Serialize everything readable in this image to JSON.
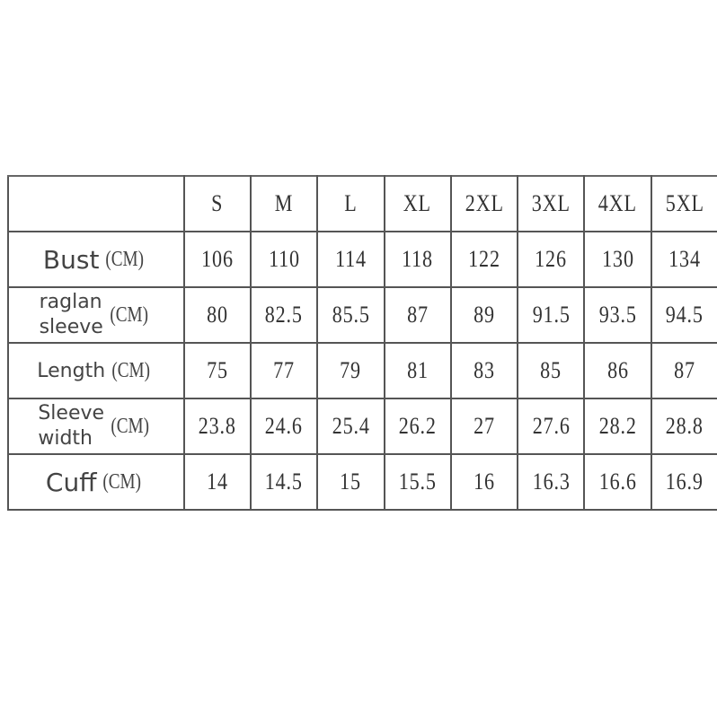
{
  "size_chart": {
    "sizes": [
      "S",
      "M",
      "L",
      "XL",
      "2XL",
      "3XL",
      "4XL",
      "5XL"
    ],
    "rows": [
      {
        "name_lines": [
          "Bust"
        ],
        "unit": "(CM)",
        "values": [
          "106",
          "110",
          "114",
          "118",
          "122",
          "126",
          "130",
          "134"
        ]
      },
      {
        "name_lines": [
          "raglan",
          "sleeve"
        ],
        "unit": "(CM)",
        "values": [
          "80",
          "82.5",
          "85.5",
          "87",
          "89",
          "91.5",
          "93.5",
          "94.5"
        ]
      },
      {
        "name_lines": [
          "Length"
        ],
        "unit": "(CM)",
        "values": [
          "75",
          "77",
          "79",
          "81",
          "83",
          "85",
          "86",
          "87"
        ]
      },
      {
        "name_lines": [
          "Sleeve",
          "width"
        ],
        "unit": "(CM)",
        "values": [
          "23.8",
          "24.6",
          "25.4",
          "26.2",
          "27",
          "27.6",
          "28.2",
          "28.8"
        ]
      },
      {
        "name_lines": [
          "Cuff"
        ],
        "unit": "(CM)",
        "values": [
          "14",
          "14.5",
          "15",
          "15.5",
          "16",
          "16.3",
          "16.6",
          "16.9"
        ]
      }
    ]
  }
}
